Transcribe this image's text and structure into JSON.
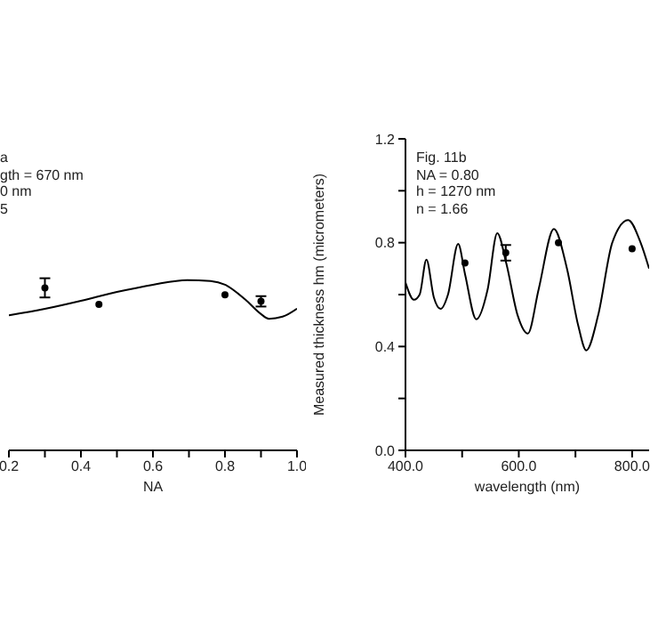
{
  "chart_data": [
    {
      "type": "line",
      "xlabel": "NA",
      "annotations": [
        "a",
        "gth = 670 nm",
        "0 nm",
        "5"
      ],
      "xlim": [
        0.2,
        1.0
      ],
      "ylim": [
        0,
        1.2
      ],
      "tick_labels": "x",
      "xticks": [
        {
          "value": 0.2,
          "label": "0.2"
        },
        {
          "value": 0.3,
          "label": null
        },
        {
          "value": 0.4,
          "label": "0.4"
        },
        {
          "value": 0.5,
          "label": null
        },
        {
          "value": 0.6,
          "label": "0.6"
        },
        {
          "value": 0.7,
          "label": null
        },
        {
          "value": 0.8,
          "label": "0.8"
        },
        {
          "value": 0.9,
          "label": null
        },
        {
          "value": 1.0,
          "label": "1.0"
        }
      ],
      "series": [
        {
          "color": "#000000",
          "x": [
            0.2,
            0.3,
            0.4,
            0.5,
            0.6,
            0.695,
            0.76,
            0.8,
            0.857,
            0.9,
            0.922,
            0.96,
            1.0
          ],
          "values": [
            0.52,
            0.545,
            0.576,
            0.61,
            0.638,
            0.656,
            0.652,
            0.638,
            0.58,
            0.525,
            0.507,
            0.515,
            0.546
          ]
        },
        {
          "type": "scatter",
          "color": "#000000",
          "x": [
            0.3,
            0.45,
            0.8,
            0.9
          ],
          "values": [
            0.626,
            0.562,
            0.599,
            0.574
          ],
          "errors": [
            0.037,
            null,
            null,
            0.02
          ]
        }
      ]
    },
    {
      "type": "line",
      "xlabel": "wavelength (nm)",
      "ylabel": "Measured thickness hm  (micrometers)",
      "annotations": [
        "Fig. 11b",
        "NA = 0.80",
        "h = 1270 nm",
        "n = 1.66"
      ],
      "xlim": [
        400,
        830
      ],
      "ylim": [
        0,
        1.2
      ],
      "xticks": [
        {
          "value": 400,
          "label": "400.0"
        },
        {
          "value": 500,
          "label": null
        },
        {
          "value": 600,
          "label": "600.0"
        },
        {
          "value": 700,
          "label": null
        },
        {
          "value": 800,
          "label": "800.0"
        }
      ],
      "yticks": [
        {
          "value": 0,
          "label": "0.0"
        },
        {
          "value": 0.2,
          "label": null
        },
        {
          "value": 0.4,
          "label": "0.4"
        },
        {
          "value": 0.6,
          "label": null
        },
        {
          "value": 0.8,
          "label": "0.8"
        },
        {
          "value": 1.0,
          "label": null
        },
        {
          "value": 1.2,
          "label": "1.2"
        }
      ],
      "series": [
        {
          "color": "#000000",
          "x": [
            400,
            415,
            425,
            437,
            450,
            462,
            475,
            493,
            505,
            525,
            545,
            562,
            578,
            598,
            616,
            635,
            662,
            685,
            705,
            719,
            740,
            765,
            793,
            815,
            830
          ],
          "values": [
            0.647,
            0.58,
            0.6,
            0.735,
            0.59,
            0.545,
            0.6,
            0.795,
            0.68,
            0.505,
            0.62,
            0.837,
            0.72,
            0.52,
            0.45,
            0.62,
            0.853,
            0.7,
            0.48,
            0.385,
            0.52,
            0.8,
            0.887,
            0.8,
            0.7
          ]
        },
        {
          "type": "scatter",
          "color": "#000000",
          "x": [
            505,
            577,
            670,
            800
          ],
          "values": [
            0.722,
            0.761,
            0.8,
            0.777
          ],
          "errors": [
            null,
            0.03,
            null,
            null
          ]
        }
      ]
    }
  ]
}
